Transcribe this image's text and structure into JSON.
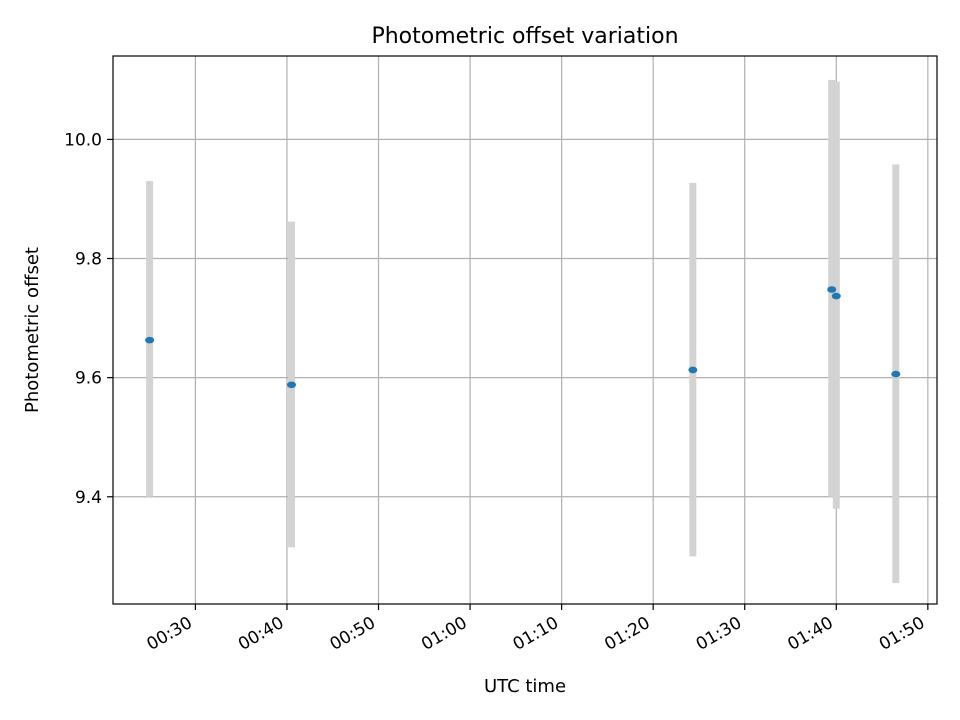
{
  "chart_data": {
    "type": "scatter",
    "title": "Photometric offset variation",
    "xlabel": "UTC time",
    "ylabel": "Photometric offset",
    "x_tick_labels": [
      "00:30",
      "00:40",
      "00:50",
      "01:00",
      "01:10",
      "01:20",
      "01:30",
      "01:40",
      "01:50"
    ],
    "y_tick_labels": [
      "9.4",
      "9.6",
      "9.8",
      "10.0"
    ],
    "x_ticks": [
      "00:30",
      "00:40",
      "00:50",
      "01:00",
      "01:10",
      "01:20",
      "01:30",
      "01:40",
      "01:50"
    ],
    "y_ticks": [
      9.4,
      9.6,
      9.8,
      10.0
    ],
    "xlim": [
      "00:21",
      "01:51"
    ],
    "ylim": [
      9.22,
      10.14
    ],
    "grid": true,
    "colors": {
      "marker": "#1f77b4",
      "errorbar": "#d3d3d3",
      "grid": "#b0b0b0",
      "axes": "#000000"
    },
    "series": [
      {
        "x": [
          "00:25:00",
          "00:40:30",
          "01:24:20",
          "01:39:30",
          "01:40:00",
          "01:46:30"
        ],
        "y": [
          9.663,
          9.588,
          9.613,
          9.748,
          9.737,
          9.606
        ],
        "yerr_low": [
          9.4,
          9.315,
          9.3,
          9.4,
          9.38,
          9.255
        ],
        "yerr_high": [
          9.93,
          9.862,
          9.927,
          10.1,
          10.097,
          9.958
        ]
      }
    ]
  }
}
